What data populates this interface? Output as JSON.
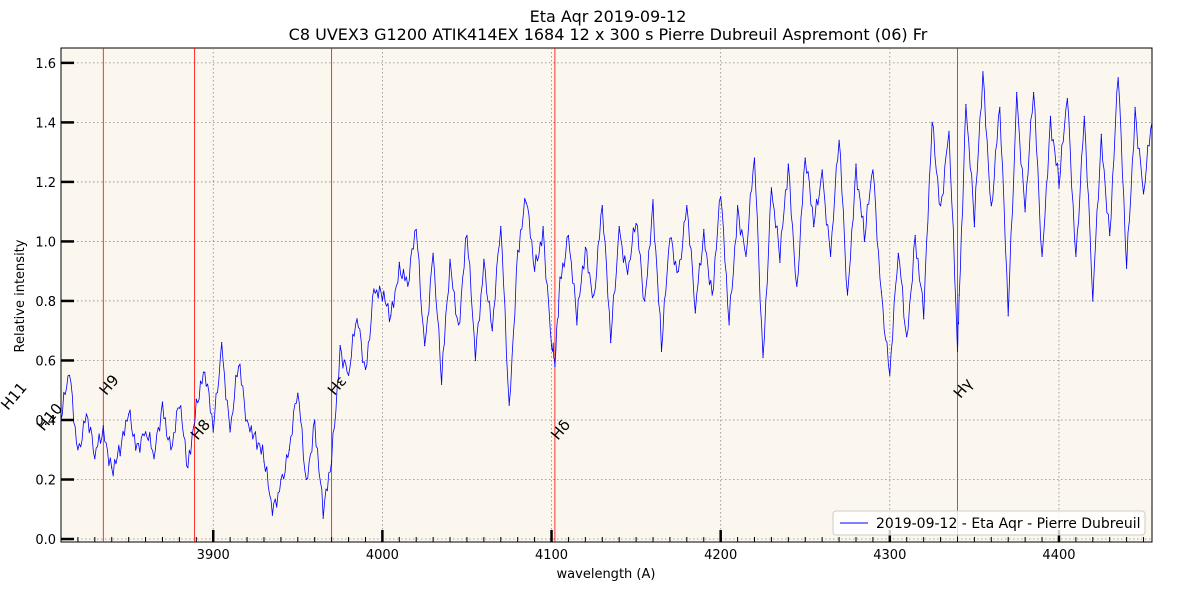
{
  "chart_data": {
    "type": "line",
    "title": "Eta Aqr 2019-09-12",
    "subtitle": "C8 UVEX3 G1200 ATIK414EX 1684 12 x 300 s Pierre Dubreuil Aspremont (06) Fr",
    "xlabel": "wavelength (A)",
    "ylabel": "Relative intensity",
    "xlim": [
      3810,
      4455
    ],
    "ylim": [
      -0.01,
      1.65
    ],
    "x_ticks": [
      3900,
      4000,
      4100,
      4200,
      4300,
      4400
    ],
    "y_ticks": [
      0.0,
      0.2,
      0.4,
      0.6,
      0.8,
      1.0,
      1.2,
      1.4,
      1.6
    ],
    "x_tick_labels": [
      "3900",
      "4000",
      "4100",
      "4200",
      "4300",
      "4400"
    ],
    "y_tick_labels": [
      "0.0",
      "0.2",
      "0.4",
      "0.6",
      "0.8",
      "1.0",
      "1.2",
      "1.4",
      "1.6"
    ],
    "grid": true,
    "legend_position": "lower-right",
    "background_color": "#fcf7ee",
    "series": [
      {
        "name": "2019-09-12 - Eta Aqr - Pierre Dubreuil",
        "color": "#0000ff",
        "x": [
          3810,
          3815,
          3820,
          3825,
          3830,
          3835,
          3840,
          3845,
          3850,
          3855,
          3860,
          3865,
          3870,
          3875,
          3880,
          3885,
          3890,
          3895,
          3900,
          3905,
          3910,
          3915,
          3920,
          3925,
          3930,
          3935,
          3940,
          3945,
          3950,
          3955,
          3960,
          3965,
          3970,
          3975,
          3980,
          3985,
          3990,
          3995,
          4000,
          4005,
          4010,
          4015,
          4020,
          4025,
          4030,
          4035,
          4040,
          4045,
          4050,
          4055,
          4060,
          4065,
          4070,
          4075,
          4080,
          4085,
          4090,
          4095,
          4100,
          4102,
          4105,
          4110,
          4115,
          4120,
          4125,
          4130,
          4135,
          4140,
          4145,
          4150,
          4155,
          4160,
          4165,
          4170,
          4175,
          4180,
          4185,
          4190,
          4195,
          4200,
          4205,
          4210,
          4215,
          4220,
          4225,
          4230,
          4235,
          4240,
          4245,
          4250,
          4255,
          4260,
          4265,
          4270,
          4275,
          4280,
          4285,
          4290,
          4295,
          4300,
          4305,
          4310,
          4315,
          4320,
          4325,
          4330,
          4335,
          4340,
          4341,
          4345,
          4350,
          4355,
          4360,
          4365,
          4370,
          4375,
          4380,
          4385,
          4390,
          4395,
          4400,
          4405,
          4410,
          4415,
          4420,
          4425,
          4430,
          4435,
          4440,
          4445,
          4450,
          4455
        ],
        "values": [
          0.4,
          0.55,
          0.3,
          0.42,
          0.27,
          0.38,
          0.24,
          0.28,
          0.42,
          0.32,
          0.36,
          0.27,
          0.46,
          0.3,
          0.44,
          0.24,
          0.47,
          0.56,
          0.36,
          0.66,
          0.36,
          0.58,
          0.4,
          0.36,
          0.26,
          0.08,
          0.2,
          0.3,
          0.49,
          0.2,
          0.4,
          0.07,
          0.26,
          0.65,
          0.55,
          0.74,
          0.57,
          0.84,
          0.8,
          0.75,
          0.93,
          0.85,
          1.04,
          0.65,
          0.96,
          0.52,
          0.94,
          0.72,
          1.02,
          0.6,
          0.94,
          0.7,
          1.05,
          0.45,
          0.97,
          1.13,
          0.9,
          1.05,
          0.65,
          0.58,
          0.88,
          1.02,
          0.72,
          0.98,
          0.82,
          1.12,
          0.66,
          1.05,
          0.89,
          1.06,
          0.8,
          1.14,
          0.63,
          1.01,
          0.9,
          1.12,
          0.76,
          1.04,
          0.82,
          1.15,
          0.72,
          1.12,
          0.95,
          1.28,
          0.61,
          1.18,
          0.93,
          1.26,
          0.85,
          1.28,
          1.05,
          1.24,
          0.95,
          1.34,
          0.82,
          1.26,
          1.0,
          1.24,
          0.83,
          0.55,
          0.96,
          0.68,
          1.02,
          0.74,
          1.4,
          1.12,
          1.37,
          0.63,
          0.82,
          1.46,
          1.05,
          1.57,
          1.12,
          1.45,
          0.75,
          1.5,
          1.1,
          1.5,
          0.95,
          1.42,
          1.18,
          1.48,
          0.95,
          1.42,
          0.8,
          1.36,
          1.02,
          1.55,
          0.91,
          1.45,
          1.16,
          1.4
        ],
        "min": 0.06,
        "max": 1.57
      }
    ],
    "vertical_lines": [
      {
        "label": "H11",
        "x": 3770
      },
      {
        "label": "H10",
        "x": 3798
      },
      {
        "label": "H9",
        "x": 3835
      },
      {
        "label": "H8",
        "x": 3889
      },
      {
        "label": "Hε",
        "x": 3970
      },
      {
        "label": "Hδ",
        "x": 4102
      },
      {
        "label": "Hγ",
        "x": 4340
      }
    ],
    "line_color": "#ff0000"
  }
}
